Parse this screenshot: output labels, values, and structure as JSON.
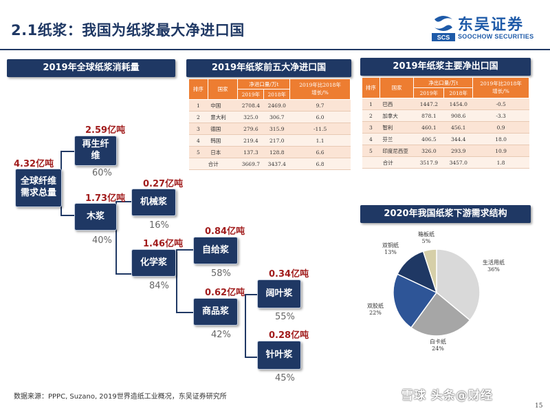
{
  "slide": {
    "title": "2.1纸浆：我国为纸浆最大净进口国",
    "page_number": "15",
    "source": "数据来源：PPPC, Suzano, 2019世界造纸工业概况，东吴证券研究所"
  },
  "logo": {
    "cn": "东吴证券",
    "en": "SOOCHOW SECURITIES",
    "mark_text": "SCS"
  },
  "watermark": "雪球 头条@财经",
  "consumption": {
    "header": "2019年全球纸浆消耗量",
    "total": {
      "label": "全球纤维需求总量",
      "value": "4.32亿吨"
    },
    "recycled": {
      "label": "再生纤维",
      "value": "2.59亿吨",
      "pct": "60%"
    },
    "wood": {
      "label": "木浆",
      "value": "1.73亿吨",
      "pct": "40%"
    },
    "mechanical": {
      "label": "机械浆",
      "value": "0.27亿吨",
      "pct": "16%"
    },
    "chemical": {
      "label": "化学浆",
      "value": "1.46亿吨",
      "pct": "84%"
    },
    "self_use": {
      "label": "自给浆",
      "value": "0.84亿吨",
      "pct": "58%"
    },
    "market": {
      "label": "商品浆",
      "value": "0.62亿吨",
      "pct": "42%"
    },
    "hardwood": {
      "label": "阔叶浆",
      "value": "0.34亿吨",
      "pct": "55%"
    },
    "softwood": {
      "label": "针叶浆",
      "value": "0.28亿吨",
      "pct": "45%"
    }
  },
  "importers": {
    "header": "2019年纸浆前五大净进口国",
    "col_rank": "排序",
    "col_country": "国家",
    "col_group": "净进口量/万t",
    "col_2019": "2019年",
    "col_2018": "2018年",
    "col_growth": "2019年比2018年增长/%",
    "rows": [
      {
        "rank": "1",
        "country": "中国",
        "y2019": "2708.4",
        "y2018": "2469.0",
        "growth": "9.7"
      },
      {
        "rank": "2",
        "country": "意大利",
        "y2019": "325.0",
        "y2018": "306.7",
        "growth": "6.0"
      },
      {
        "rank": "3",
        "country": "德国",
        "y2019": "279.6",
        "y2018": "315.9",
        "growth": "-11.5"
      },
      {
        "rank": "4",
        "country": "韩国",
        "y2019": "219.4",
        "y2018": "217.0",
        "growth": "1.1"
      },
      {
        "rank": "5",
        "country": "日本",
        "y2019": "137.3",
        "y2018": "128.8",
        "growth": "6.6"
      }
    ],
    "total": {
      "label": "合计",
      "y2019": "3669.7",
      "y2018": "3437.4",
      "growth": "6.8"
    }
  },
  "exporters": {
    "header": "2019年纸浆主要净出口国",
    "col_rank": "排序",
    "col_country": "国家",
    "col_group": "净出口量/万t",
    "col_2019": "2019年",
    "col_2018": "2018年",
    "col_growth": "2019年比2018年增长/%",
    "rows": [
      {
        "rank": "1",
        "country": "巴西",
        "y2019": "1447.2",
        "y2018": "1454.0",
        "growth": "-0.5"
      },
      {
        "rank": "2",
        "country": "加拿大",
        "y2019": "878.1",
        "y2018": "908.6",
        "growth": "-3.3"
      },
      {
        "rank": "3",
        "country": "智利",
        "y2019": "460.1",
        "y2018": "456.1",
        "growth": "0.9"
      },
      {
        "rank": "4",
        "country": "芬兰",
        "y2019": "406.5",
        "y2018": "344.4",
        "growth": "18.0"
      },
      {
        "rank": "5",
        "country": "印度尼西亚",
        "y2019": "326.0",
        "y2018": "293.9",
        "growth": "10.9"
      }
    ],
    "total": {
      "label": "合计",
      "y2019": "3517.9",
      "y2018": "3457.0",
      "growth": "1.8"
    }
  },
  "pie": {
    "header": "2020年我国纸浆下游需求结构",
    "slices": [
      {
        "name": "生活用纸",
        "pct": "36%",
        "value": 36,
        "color": "#d9d9d9"
      },
      {
        "name": "白卡纸",
        "pct": "24%",
        "value": 24,
        "color": "#a6a6a6"
      },
      {
        "name": "双胶纸",
        "pct": "22%",
        "value": 22,
        "color": "#2e5597"
      },
      {
        "name": "双铜纸",
        "pct": "13%",
        "value": 13,
        "color": "#1f3864"
      },
      {
        "name": "箱板纸",
        "pct": "5%",
        "value": 5,
        "color": "#d6cfa8"
      }
    ]
  }
}
